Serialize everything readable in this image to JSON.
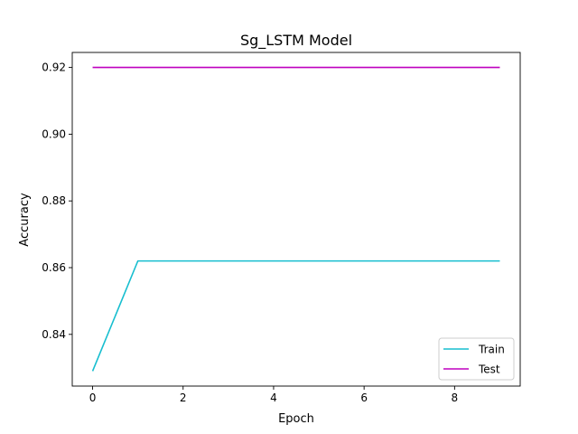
{
  "chart_data": {
    "type": "line",
    "title": "Sg_LSTM Model",
    "xlabel": "Epoch",
    "ylabel": "Accuracy",
    "x": [
      0,
      1,
      2,
      3,
      4,
      5,
      6,
      7,
      8,
      9
    ],
    "series": [
      {
        "name": "Train",
        "color": "#17becf",
        "values": [
          0.829,
          0.862,
          0.862,
          0.862,
          0.862,
          0.862,
          0.862,
          0.862,
          0.862,
          0.862
        ]
      },
      {
        "name": "Test",
        "color": "#bf00bf",
        "values": [
          0.92,
          0.92,
          0.92,
          0.92,
          0.92,
          0.92,
          0.92,
          0.92,
          0.92,
          0.92
        ]
      }
    ],
    "xlim": [
      -0.45,
      9.45
    ],
    "ylim": [
      0.8245,
      0.9245
    ],
    "xticks": [
      0,
      2,
      4,
      6,
      8
    ],
    "xtick_labels": [
      "0",
      "2",
      "4",
      "6",
      "8"
    ],
    "yticks": [
      0.84,
      0.86,
      0.88,
      0.9,
      0.92
    ],
    "ytick_labels": [
      "0.84",
      "0.86",
      "0.88",
      "0.90",
      "0.92"
    ],
    "grid": false,
    "legend_position": "lower-right"
  }
}
